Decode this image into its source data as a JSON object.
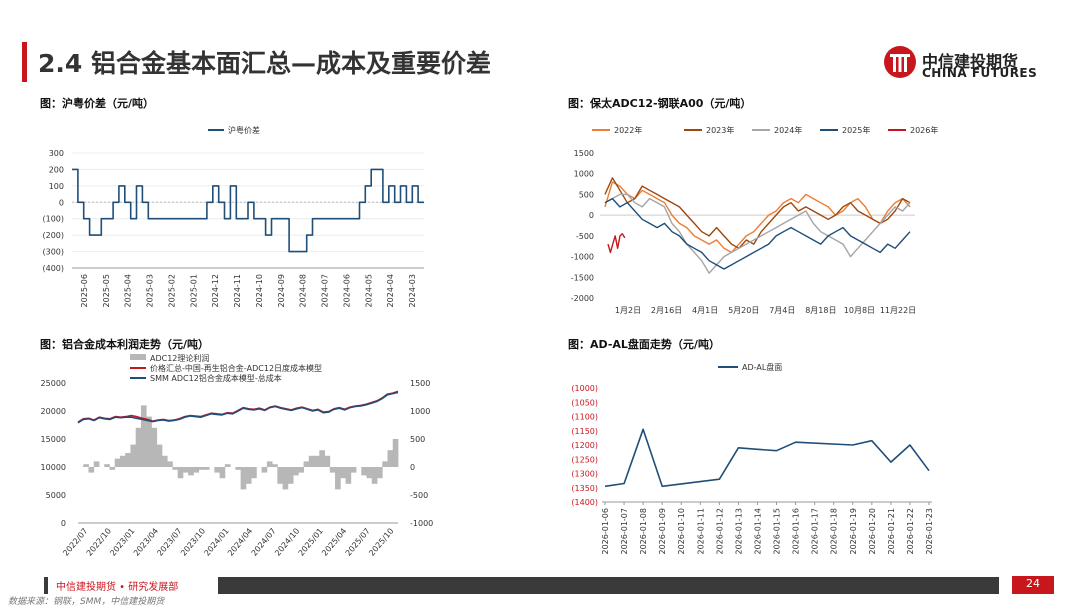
{
  "header": {
    "title": "2.4 铝合金基本面汇总—成本及重要价差",
    "logo_cn": "中信建投期货",
    "logo_en": "CHINA FUTURES"
  },
  "footer": {
    "org": "中信建投期货 • 研究发展部",
    "page": "24",
    "source": "数据来源：钢联，SMM，中信建投期货"
  },
  "colors": {
    "brand_red": "#c8161d",
    "navy": "#1f4e79"
  },
  "chart_data": [
    {
      "id": "spread",
      "fig_title": "图：沪粤价差（元/吨）",
      "type": "line",
      "legend": [
        "沪粤价差"
      ],
      "ylim": [
        -400,
        300
      ],
      "y_ticks": [
        "300",
        "200",
        "100",
        "0",
        "(100)",
        "(200)",
        "(300)",
        "(400)"
      ],
      "x_ticks": [
        "2025-06",
        "2025-05",
        "2025-04",
        "2025-03",
        "2025-02",
        "2025-01",
        "2024-12",
        "2024-11",
        "2024-10",
        "2024-09",
        "2024-08",
        "2024-07",
        "2024-06",
        "2024-05",
        "2024-04",
        "2024-03"
      ],
      "values": [
        200,
        0,
        -100,
        -200,
        -200,
        -100,
        -100,
        0,
        100,
        0,
        -100,
        100,
        0,
        -100,
        -100,
        -100,
        -100,
        -100,
        -100,
        -100,
        -100,
        -100,
        -100,
        0,
        100,
        0,
        -100,
        100,
        -100,
        -100,
        0,
        -100,
        -100,
        -200,
        -100,
        -100,
        -100,
        -300,
        -300,
        -300,
        -200,
        -100,
        -100,
        -100,
        -100,
        -100,
        -100,
        -100,
        -100,
        0,
        100,
        200,
        200,
        0,
        100,
        0,
        100,
        0,
        100,
        0,
        0
      ]
    },
    {
      "id": "adc12",
      "fig_title": "图：保太ADC12-钢联A00（元/吨）",
      "type": "line",
      "legend": [
        "2022年",
        "2023年",
        "2024年",
        "2025年",
        "2026年"
      ],
      "ylim": [
        -2000,
        1500
      ],
      "y_ticks": [
        "1500",
        "1000",
        "500",
        "0",
        "-500",
        "-1000",
        "-1500",
        "-2000"
      ],
      "x_ticks": [
        "1月2日",
        "2月16日",
        "4月1日",
        "5月20日",
        "7月4日",
        "8月18日",
        "10月8日",
        "11月22日"
      ],
      "series": [
        {
          "name": "2022年",
          "color": "#ed7d31",
          "values": [
            200,
            800,
            700,
            500,
            400,
            600,
            500,
            400,
            300,
            0,
            -200,
            -300,
            -500,
            -600,
            -700,
            -600,
            -800,
            -900,
            -700,
            -500,
            -400,
            -200,
            0,
            100,
            300,
            400,
            300,
            500,
            400,
            300,
            200,
            0,
            100,
            300,
            400,
            200,
            -100,
            -200,
            100,
            300,
            400,
            200
          ]
        },
        {
          "name": "2023年",
          "color": "#9e480e",
          "values": [
            500,
            900,
            600,
            300,
            400,
            700,
            600,
            500,
            400,
            300,
            200,
            0,
            -200,
            -400,
            -500,
            -300,
            -500,
            -700,
            -800,
            -600,
            -700,
            -400,
            -200,
            0,
            200,
            300,
            100,
            200,
            100,
            0,
            -100,
            0,
            200,
            300,
            100,
            0,
            -100,
            -200,
            -100,
            100,
            400,
            300
          ]
        },
        {
          "name": "2024年",
          "color": "#a5a5a5",
          "values": [
            300,
            400,
            500,
            500,
            300,
            200,
            400,
            300,
            200,
            -200,
            -400,
            -700,
            -900,
            -1100,
            -1400,
            -1200,
            -1000,
            -900,
            -800,
            -700,
            -600,
            -500,
            -400,
            -300,
            -200,
            -100,
            0,
            100,
            -200,
            -400,
            -500,
            -600,
            -700,
            -1000,
            -800,
            -600,
            -400,
            -200,
            0,
            200,
            100,
            300
          ]
        },
        {
          "name": "2025年",
          "color": "#1f4e79",
          "values": [
            300,
            400,
            200,
            300,
            100,
            -100,
            -200,
            -300,
            -200,
            -400,
            -500,
            -700,
            -800,
            -900,
            -1100,
            -1200,
            -1300,
            -1200,
            -1100,
            -1000,
            -900,
            -800,
            -700,
            -500,
            -400,
            -300,
            -400,
            -500,
            -600,
            -700,
            -500,
            -400,
            -300,
            -500,
            -600,
            -700,
            -800,
            -900,
            -700,
            -800,
            -600,
            -400
          ]
        },
        {
          "name": "2026年",
          "color": "#c8161d",
          "values": [
            -700,
            -900,
            -700,
            -500,
            -800,
            -500,
            -450,
            -550
          ]
        }
      ]
    },
    {
      "id": "profit",
      "fig_title": "图：铝合金成本利润走势（元/吨）",
      "type": "line",
      "legend": [
        "ADC12理论利润",
        "价格汇总-中国-再生铝合金-ADC12日度成本模型",
        "SMM ADC12铝合金成本模型-总成本"
      ],
      "left_ylim": [
        0,
        25000
      ],
      "right_ylim": [
        -1000,
        1500
      ],
      "left_ticks": [
        "25000",
        "20000",
        "15000",
        "10000",
        "5000",
        "0"
      ],
      "right_ticks": [
        "1500",
        "1000",
        "500",
        "0",
        "-500",
        "-1000"
      ],
      "x_ticks": [
        "2022/07",
        "2022/10",
        "2023/01",
        "2023/04",
        "2023/07",
        "2023/10",
        "2024/01",
        "2024/04",
        "2024/07",
        "2024/10",
        "2025/01",
        "2025/04",
        "2025/07",
        "2025/10"
      ],
      "profit": [
        0,
        50,
        -100,
        100,
        0,
        50,
        -50,
        150,
        200,
        250,
        400,
        700,
        1100,
        900,
        700,
        400,
        200,
        100,
        -50,
        -200,
        -100,
        -150,
        -100,
        -50,
        -50,
        0,
        -100,
        -200,
        50,
        0,
        -50,
        -400,
        -300,
        -200,
        0,
        -100,
        100,
        50,
        -300,
        -400,
        -300,
        -150,
        -100,
        100,
        200,
        200,
        300,
        200,
        -100,
        -400,
        -200,
        -300,
        -100,
        0,
        -150,
        -200,
        -300,
        -200,
        100,
        300,
        500
      ],
      "cost_daily": [
        18000,
        18600,
        18700,
        18400,
        18900,
        18700,
        18600,
        19000,
        18900,
        19000,
        19200,
        19000,
        18700,
        18500,
        18200,
        18400,
        18500,
        18300,
        18400,
        18600,
        19000,
        19200,
        19100,
        19000,
        19300,
        19600,
        19500,
        19400,
        19700,
        19600,
        20100,
        20600,
        20400,
        20300,
        20500,
        20200,
        20700,
        20900,
        20600,
        20400,
        20200,
        20500,
        20700,
        20400,
        20100,
        20300,
        19800,
        19900,
        20400,
        20600,
        20300,
        20700,
        20900,
        21000,
        21200,
        21500,
        21800,
        22300,
        23000,
        23200,
        23500
      ],
      "cost_total": [
        17900,
        18500,
        18600,
        18300,
        18800,
        18600,
        18500,
        18900,
        18800,
        18900,
        18900,
        18700,
        18500,
        18300,
        18100,
        18300,
        18400,
        18200,
        18300,
        18500,
        18900,
        19100,
        19000,
        18900,
        19200,
        19500,
        19400,
        19300,
        19600,
        19500,
        20000,
        20500,
        20300,
        20200,
        20400,
        20100,
        20600,
        20800,
        20500,
        20300,
        20100,
        20400,
        20600,
        20300,
        20000,
        20200,
        19700,
        19800,
        20300,
        20500,
        20200,
        20600,
        20800,
        20900,
        21100,
        21400,
        21700,
        22200,
        22900,
        23100,
        23300
      ]
    },
    {
      "id": "adal",
      "fig_title": "图：AD-AL盘面走势（元/吨）",
      "type": "line",
      "legend": [
        "AD-AL盘面"
      ],
      "ylim": [
        -1400,
        -1000
      ],
      "y_ticks": [
        "(1000)",
        "(1050)",
        "(1100)",
        "(1150)",
        "(1200)",
        "(1250)",
        "(1300)",
        "(1350)",
        "(1400)"
      ],
      "categories": [
        "2026-01-06",
        "2026-01-07",
        "2026-01-08",
        "2026-01-09",
        "2026-01-10",
        "2026-01-11",
        "2026-01-12",
        "2026-01-13",
        "2026-01-14",
        "2026-01-15",
        "2026-01-16",
        "2026-01-17",
        "2026-01-18",
        "2026-01-19",
        "2026-01-20",
        "2026-01-21",
        "2026-01-22",
        "2026-01-23"
      ],
      "x": [
        "2026-01-06",
        "2026-01-07",
        "2026-01-08",
        "2026-01-09",
        "2026-01-12",
        "2026-01-13",
        "2026-01-14",
        "2026-01-15",
        "2026-01-16",
        "2026-01-19",
        "2026-01-20",
        "2026-01-21",
        "2026-01-22",
        "2026-01-23"
      ],
      "values": [
        -1345,
        -1335,
        -1145,
        -1345,
        -1320,
        -1210,
        -1215,
        -1220,
        -1190,
        -1200,
        -1185,
        -1260,
        -1200,
        -1290
      ]
    }
  ]
}
